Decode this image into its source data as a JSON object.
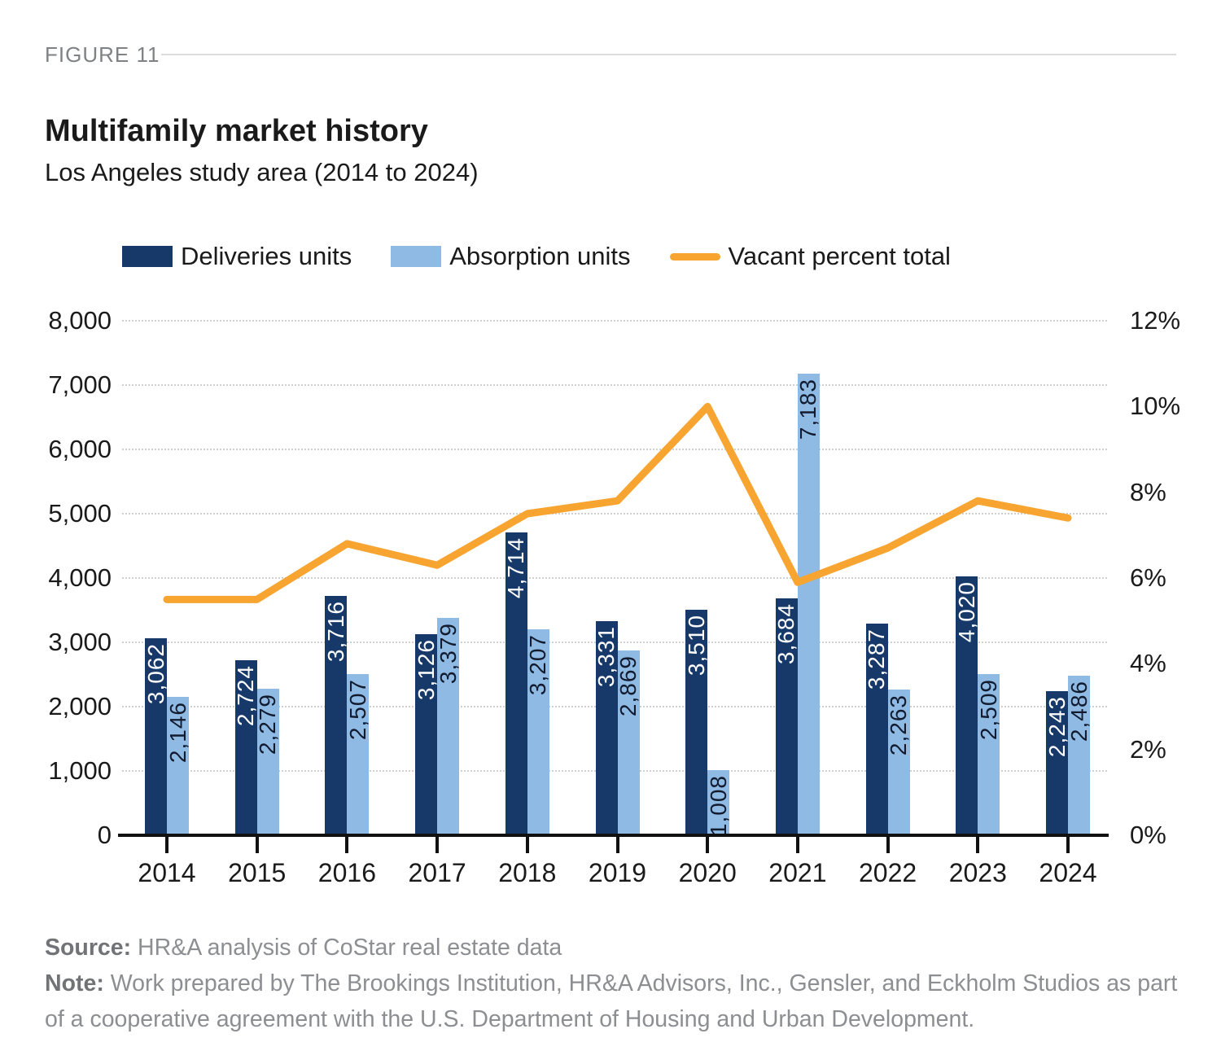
{
  "figure_label": "FIGURE 11",
  "title": "Multifamily market history",
  "subtitle": "Los Angeles study area (2014 to 2024)",
  "legend": [
    {
      "label": "Deliveries units",
      "color": "#16396a",
      "swatch": "bar"
    },
    {
      "label": "Absorption units",
      "color": "#8fbae4",
      "swatch": "bar"
    },
    {
      "label": "Vacant percent total",
      "color": "#f7a430",
      "swatch": "line"
    }
  ],
  "chart_data": {
    "type": "bar+line",
    "title": "Multifamily market history",
    "subtitle": "Los Angeles study area (2014 to 2024)",
    "categories": [
      "2014",
      "2015",
      "2016",
      "2017",
      "2018",
      "2019",
      "2020",
      "2021",
      "2022",
      "2023",
      "2024"
    ],
    "series": [
      {
        "name": "Deliveries units",
        "type": "bar",
        "axis": "left",
        "color": "#16396a",
        "label_color": "#ffffff",
        "values": [
          3062,
          2724,
          3716,
          3126,
          4714,
          3331,
          3510,
          3684,
          3287,
          4020,
          2243
        ],
        "labels": [
          "3,062",
          "2,724",
          "3,716",
          "3,126",
          "4,714",
          "3,331",
          "3,510",
          "3,684",
          "3,287",
          "4,020",
          "2,243"
        ]
      },
      {
        "name": "Absorption units",
        "type": "bar",
        "axis": "left",
        "color": "#8fbae4",
        "label_color": "#121b2e",
        "values": [
          2146,
          2279,
          2507,
          3379,
          3207,
          2869,
          1008,
          7183,
          2263,
          2509,
          2486
        ],
        "labels": [
          "2,146",
          "2,279",
          "2,507",
          "3,379",
          "3,207",
          "2,869",
          "1,008",
          "7,183",
          "2,263",
          "2,509",
          "2,486"
        ]
      },
      {
        "name": "Vacant percent total",
        "type": "line",
        "axis": "right",
        "color": "#f7a430",
        "values": [
          5.5,
          5.5,
          6.8,
          6.3,
          7.5,
          7.8,
          10.0,
          5.9,
          6.7,
          7.8,
          7.4
        ]
      }
    ],
    "left_axis": {
      "min": 0,
      "max": 8000,
      "step": 1000,
      "tick_labels": [
        "0",
        "1,000",
        "2,000",
        "3,000",
        "4,000",
        "5,000",
        "6,000",
        "7,000",
        "8,000"
      ]
    },
    "right_axis": {
      "min": 0,
      "max": 12,
      "step": 2,
      "tick_labels": [
        "0%",
        "2%",
        "4%",
        "6%",
        "8%",
        "10%",
        "12%"
      ]
    },
    "grid": "horizontal-dotted",
    "legend_position": "top"
  },
  "footer": {
    "source_label": "Source:",
    "source_text": " HR&A analysis of CoStar real estate data",
    "note_label": "Note:",
    "note_text": " Work prepared by The Brookings Institution, HR&A Advisors, Inc., Gensler, and Eckholm Studios as part of a cooperative agreement with the U.S. Department of Housing and Urban Development."
  }
}
